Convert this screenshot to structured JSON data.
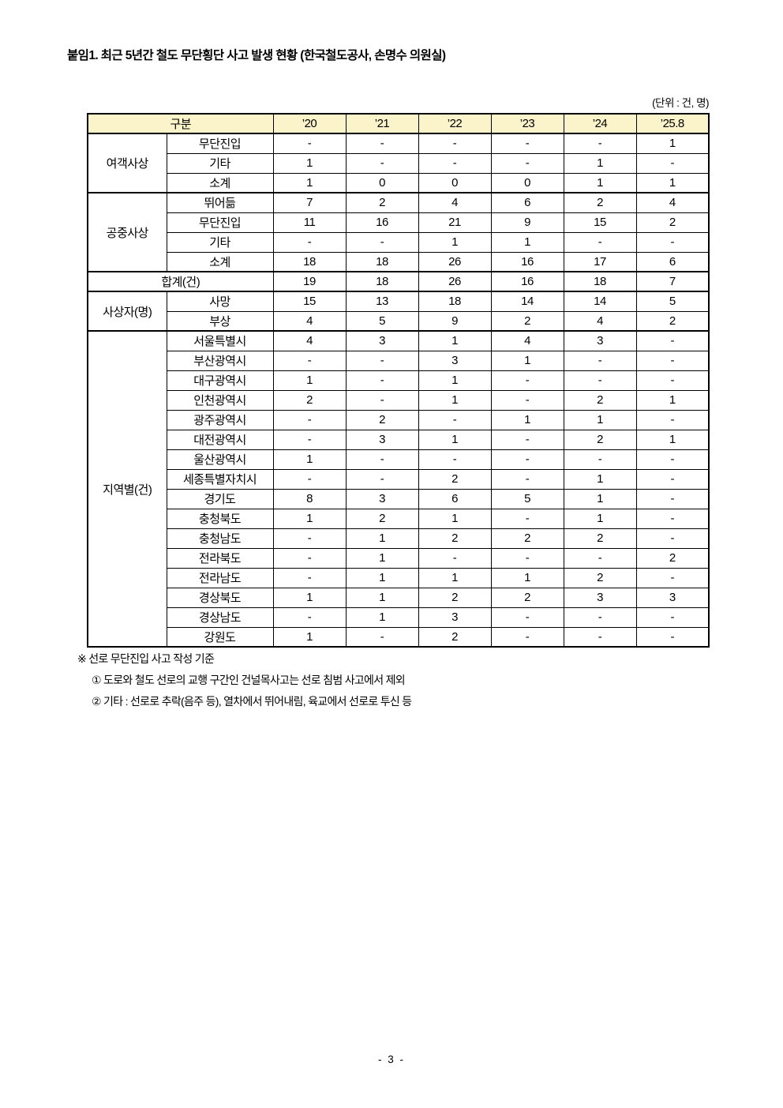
{
  "page": {
    "title": "붙임1. 최근 5년간 철도 무단횡단 사고 발생 현황 (한국철도공사, 손명수 의원실)",
    "unit_note": "(단위 : 건, 명)",
    "page_number": "- 3 -"
  },
  "table": {
    "header": {
      "category_label": "구분",
      "year_columns": [
        "’20",
        "’21",
        "’22",
        "’23",
        "’24",
        "’25.8"
      ]
    },
    "sections": [
      {
        "type": "group",
        "name": "여객사상",
        "rows": [
          {
            "label": "무단진입",
            "values": [
              "-",
              "-",
              "-",
              "-",
              "-",
              "1"
            ]
          },
          {
            "label": "기타",
            "values": [
              "1",
              "-",
              "-",
              "-",
              "1",
              "-"
            ]
          },
          {
            "label": "소계",
            "values": [
              "1",
              "0",
              "0",
              "0",
              "1",
              "1"
            ]
          }
        ]
      },
      {
        "type": "group",
        "name": "공중사상",
        "rows": [
          {
            "label": "뛰어듦",
            "values": [
              "7",
              "2",
              "4",
              "6",
              "2",
              "4"
            ]
          },
          {
            "label": "무단진입",
            "values": [
              "11",
              "16",
              "21",
              "9",
              "15",
              "2"
            ]
          },
          {
            "label": "기타",
            "values": [
              "-",
              "-",
              "1",
              "1",
              "-",
              "-"
            ]
          },
          {
            "label": "소계",
            "values": [
              "18",
              "18",
              "26",
              "16",
              "17",
              "6"
            ]
          }
        ]
      },
      {
        "type": "total",
        "name": "합계(건)",
        "values": [
          "19",
          "18",
          "26",
          "16",
          "18",
          "7"
        ]
      },
      {
        "type": "group",
        "name": "사상자(명)",
        "rows": [
          {
            "label": "사망",
            "values": [
              "15",
              "13",
              "18",
              "14",
              "14",
              "5"
            ]
          },
          {
            "label": "부상",
            "values": [
              "4",
              "5",
              "9",
              "2",
              "4",
              "2"
            ]
          }
        ]
      },
      {
        "type": "group",
        "name": "지역별(건)",
        "rows": [
          {
            "label": "서울특별시",
            "values": [
              "4",
              "3",
              "1",
              "4",
              "3",
              "-"
            ]
          },
          {
            "label": "부산광역시",
            "values": [
              "-",
              "-",
              "3",
              "1",
              "-",
              "-"
            ]
          },
          {
            "label": "대구광역시",
            "values": [
              "1",
              "-",
              "1",
              "-",
              "-",
              "-"
            ]
          },
          {
            "label": "인천광역시",
            "values": [
              "2",
              "-",
              "1",
              "-",
              "2",
              "1"
            ]
          },
          {
            "label": "광주광역시",
            "values": [
              "-",
              "2",
              "-",
              "1",
              "1",
              "-"
            ]
          },
          {
            "label": "대전광역시",
            "values": [
              "-",
              "3",
              "1",
              "-",
              "2",
              "1"
            ]
          },
          {
            "label": "울산광역시",
            "values": [
              "1",
              "-",
              "-",
              "-",
              "-",
              "-"
            ]
          },
          {
            "label": "세종특별자치시",
            "values": [
              "-",
              "-",
              "2",
              "-",
              "1",
              "-"
            ]
          },
          {
            "label": "경기도",
            "values": [
              "8",
              "3",
              "6",
              "5",
              "1",
              "-"
            ]
          },
          {
            "label": "충청북도",
            "values": [
              "1",
              "2",
              "1",
              "-",
              "1",
              "-"
            ]
          },
          {
            "label": "충청남도",
            "values": [
              "-",
              "1",
              "2",
              "2",
              "2",
              "-"
            ]
          },
          {
            "label": "전라북도",
            "values": [
              "-",
              "1",
              "-",
              "-",
              "-",
              "2"
            ]
          },
          {
            "label": "전라남도",
            "values": [
              "-",
              "1",
              "1",
              "1",
              "2",
              "-"
            ]
          },
          {
            "label": "경상북도",
            "values": [
              "1",
              "1",
              "2",
              "2",
              "3",
              "3"
            ]
          },
          {
            "label": "경상남도",
            "values": [
              "-",
              "1",
              "3",
              "-",
              "-",
              "-"
            ]
          },
          {
            "label": "강원도",
            "values": [
              "1",
              "-",
              "2",
              "-",
              "-",
              "-"
            ]
          }
        ]
      }
    ]
  },
  "footnotes": {
    "heading": "※ 선로 무단진입 사고 작성 기준",
    "items": [
      "① 도로와 철도 선로의 교행 구간인 건널목사고는 선로 침범 사고에서 제외",
      "② 기타 : 선로로 추락(음주 등), 열차에서 뛰어내림, 육교에서 선로로 투신 등"
    ]
  },
  "colors": {
    "header_bg": "#FBF3C9",
    "border": "#000000",
    "text": "#000000"
  }
}
